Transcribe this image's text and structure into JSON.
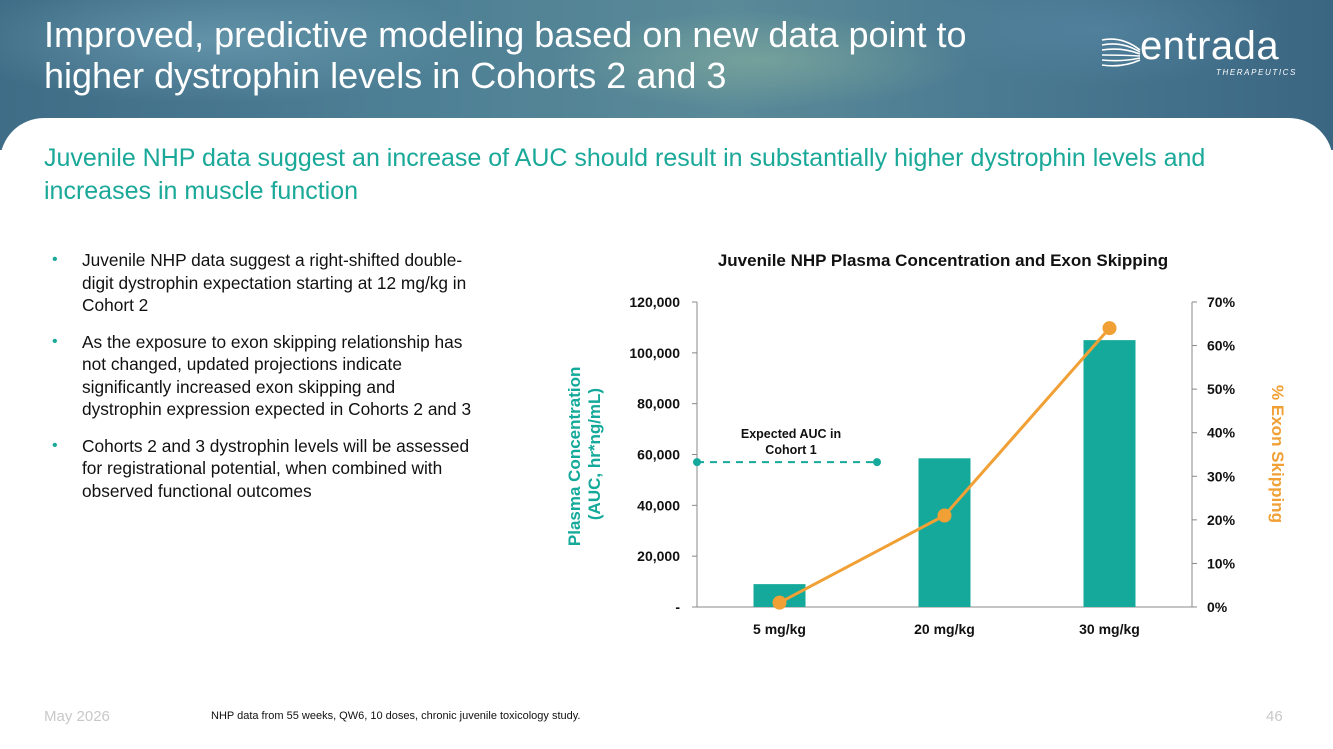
{
  "header": {
    "title": "Improved, predictive modeling based on new data point to higher dystrophin levels in Cohorts 2 and 3",
    "logo_name": "entrada",
    "logo_sub": "THERAPEUTICS"
  },
  "subtitle": "Juvenile NHP data suggest an increase of AUC should result in substantially higher dystrophin levels and increases in muscle function",
  "bullets": [
    "Juvenile NHP data suggest a right-shifted double-digit dystrophin expectation starting at 12 mg/kg in Cohort 2",
    "As the exposure to exon skipping relationship has not changed, updated projections indicate significantly increased exon skipping and dystrophin expression expected in Cohorts 2 and 3",
    "Cohorts 2 and 3 dystrophin levels will be assessed for registrational potential, when combined with observed functional outcomes"
  ],
  "chart_data": {
    "type": "bar",
    "title": "Juvenile NHP Plasma Concentration and Exon Skipping",
    "categories": [
      "5 mg/kg",
      "20 mg/kg",
      "30 mg/kg"
    ],
    "series": [
      {
        "kind": "bar",
        "axis": "left",
        "values": [
          9000,
          58500,
          105000
        ],
        "color": "#14a99a"
      },
      {
        "kind": "line",
        "axis": "right",
        "values": [
          1,
          21,
          64
        ],
        "color": "#f0a035"
      }
    ],
    "ylabel_left_line1": "Plasma Concentration",
    "ylabel_left_line2": "(AUC, hr*ng/mL)",
    "ylabel_right": "% Exon Skipping",
    "ylim_left": [
      0,
      120000
    ],
    "yticks_left": [
      "-",
      "20,000",
      "40,000",
      "60,000",
      "80,000",
      "100,000",
      "120,000"
    ],
    "ylim_right": [
      0,
      70
    ],
    "yticks_right": [
      "0%",
      "10%",
      "20%",
      "30%",
      "40%",
      "50%",
      "60%",
      "70%"
    ],
    "reference_line": {
      "label_line1": "Expected AUC in",
      "label_line2": "Cohort 1",
      "value": 57000,
      "color": "#14a99a"
    },
    "grid": false
  },
  "footer": {
    "date": "May 2026",
    "note": "NHP data from 55 weeks, QW6, 10 doses, chronic juvenile toxicology study.",
    "page": "46"
  }
}
